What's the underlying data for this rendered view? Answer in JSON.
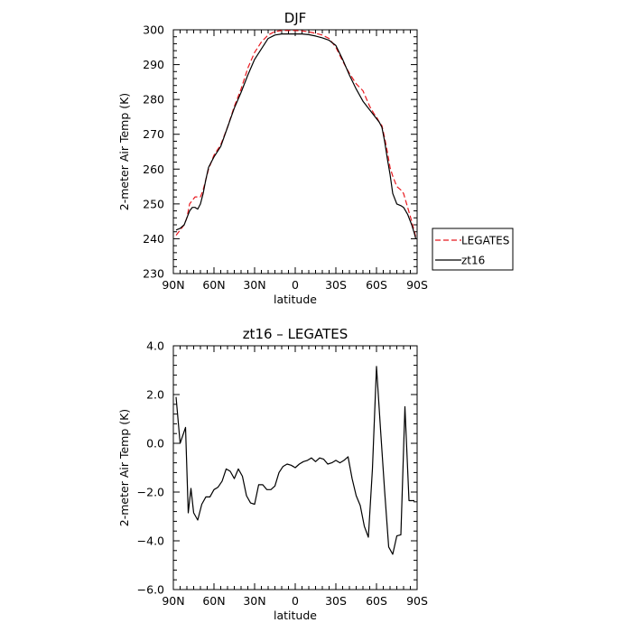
{
  "chart_data": [
    {
      "type": "line",
      "title": "DJF",
      "xlabel": "latitude",
      "ylabel": "2-meter Air Temp (K)",
      "xlim": [
        90,
        -90
      ],
      "ylim": [
        230,
        300
      ],
      "x_tick_values": [
        90,
        60,
        30,
        0,
        -30,
        -60,
        -90
      ],
      "x_tick_labels": [
        "90N",
        "60N",
        "30N",
        "0",
        "30S",
        "60S",
        "90S"
      ],
      "y_tick_values": [
        230,
        240,
        250,
        260,
        270,
        280,
        290,
        300
      ],
      "y_tick_labels": [
        "230",
        "240",
        "250",
        "260",
        "270",
        "280",
        "290",
        "300"
      ],
      "legend": {
        "placement": "right"
      },
      "series": [
        {
          "name": "LEGATES",
          "color": "#e8191f",
          "dash": "dashed",
          "x": [
            88,
            85,
            82,
            80,
            78,
            76,
            74,
            72,
            70,
            68,
            66,
            64,
            60,
            55,
            50,
            45,
            40,
            35,
            30,
            25,
            20,
            15,
            10,
            5,
            0,
            -5,
            -10,
            -15,
            -20,
            -25,
            -30,
            -35,
            -40,
            -45,
            -50,
            -55,
            -58,
            -60,
            -62,
            -64,
            -66,
            -68,
            -70,
            -72,
            -75,
            -78,
            -80,
            -83,
            -86,
            -88,
            -89
          ],
          "values": [
            241,
            242.5,
            244,
            246,
            250,
            251,
            252,
            252,
            252,
            254,
            257,
            260,
            264,
            267,
            272,
            278,
            283,
            289,
            293.5,
            296.5,
            298.5,
            299.5,
            299.8,
            299.8,
            299.8,
            299.7,
            299.4,
            299,
            298.5,
            297.5,
            295,
            291,
            287.5,
            284.5,
            282.5,
            278,
            276,
            275,
            273.5,
            272.5,
            269,
            265,
            260.5,
            258,
            255,
            254,
            253,
            249,
            245,
            242,
            240.5
          ]
        },
        {
          "name": "zt16",
          "color": "#000000",
          "dash": "solid",
          "x": [
            88,
            85,
            82,
            80,
            78,
            76,
            74,
            72,
            70,
            68,
            66,
            64,
            60,
            55,
            50,
            45,
            40,
            35,
            30,
            25,
            20,
            15,
            10,
            5,
            0,
            -5,
            -10,
            -15,
            -20,
            -25,
            -30,
            -35,
            -40,
            -45,
            -50,
            -55,
            -58,
            -60,
            -62,
            -64,
            -66,
            -68,
            -70,
            -72,
            -75,
            -78,
            -80,
            -83,
            -86,
            -88,
            -89
          ],
          "values": [
            242.5,
            243,
            244,
            246,
            248,
            249,
            249,
            248.5,
            250,
            253,
            257,
            260.5,
            263.5,
            266.5,
            272,
            277.5,
            282,
            287,
            291.5,
            294.5,
            297.5,
            298.5,
            298.8,
            298.8,
            298.8,
            298.8,
            298.6,
            298.2,
            297.7,
            297,
            295.5,
            291.5,
            287,
            283,
            279.5,
            277,
            275.5,
            274.5,
            273.5,
            272,
            268,
            263,
            258.5,
            253,
            250,
            249.5,
            249,
            247,
            244,
            241.5,
            240
          ]
        }
      ]
    },
    {
      "type": "line",
      "title": "zt16 – LEGATES",
      "xlabel": "latitude",
      "ylabel": "2-meter Air Temp (K)",
      "xlim": [
        90,
        -90
      ],
      "ylim": [
        -6,
        4
      ],
      "x_tick_values": [
        90,
        60,
        30,
        0,
        -30,
        -60,
        -90
      ],
      "x_tick_labels": [
        "90N",
        "60N",
        "30N",
        "0",
        "30S",
        "60S",
        "90S"
      ],
      "y_tick_values": [
        -6,
        -4,
        -2,
        0,
        2,
        4
      ],
      "y_tick_labels": [
        "−6.0",
        "−4.0",
        "−2.0",
        "0.0",
        "2.0",
        "4.0"
      ],
      "series": [
        {
          "color": "#000000",
          "dash": "solid",
          "x": [
            88,
            85,
            81,
            79,
            77,
            75,
            72,
            69,
            66,
            63,
            60,
            57,
            54,
            51,
            48,
            45,
            42,
            39,
            36,
            33,
            30,
            27,
            24,
            21,
            18,
            15,
            12,
            9,
            6,
            3,
            0,
            -3,
            -6,
            -9,
            -12,
            -15,
            -18,
            -21,
            -24,
            -27,
            -30,
            -33,
            -36,
            -39,
            -42,
            -45,
            -48,
            -51,
            -54,
            -57,
            -60,
            -63,
            -66,
            -69,
            -72,
            -75,
            -78,
            -81,
            -84,
            -86,
            -88
          ],
          "values": [
            1.9,
            0.0,
            0.65,
            -2.85,
            -1.85,
            -2.85,
            -3.15,
            -2.5,
            -2.2,
            -2.2,
            -1.9,
            -1.8,
            -1.55,
            -1.05,
            -1.15,
            -1.45,
            -1.05,
            -1.35,
            -2.15,
            -2.45,
            -2.5,
            -1.7,
            -1.7,
            -1.9,
            -1.9,
            -1.75,
            -1.2,
            -0.95,
            -0.85,
            -0.9,
            -1.0,
            -0.85,
            -0.75,
            -0.7,
            -0.6,
            -0.75,
            -0.6,
            -0.65,
            -0.85,
            -0.8,
            -0.7,
            -0.8,
            -0.7,
            -0.55,
            -1.45,
            -2.15,
            -2.55,
            -3.4,
            -3.85,
            -1.05,
            3.15,
            0.55,
            -1.95,
            -4.25,
            -4.55,
            -3.8,
            -3.75,
            1.5,
            -2.35,
            -2.35,
            -2.35
          ]
        }
      ]
    }
  ]
}
